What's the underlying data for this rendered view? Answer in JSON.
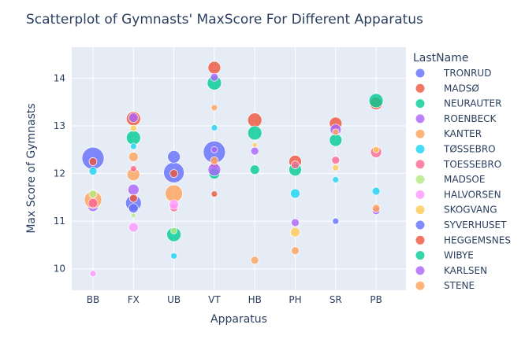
{
  "chart_data": {
    "type": "scatter",
    "title": "Scatterplot of Gymnasts' MaxScore For Different Apparatus",
    "xlabel": "Apparatus",
    "ylabel": "Max Score of Gymnasts",
    "categories": [
      "BB",
      "FX",
      "UB",
      "VT",
      "HB",
      "PH",
      "SR",
      "PB"
    ],
    "ylim": [
      9.55,
      14.65
    ],
    "yticks": [
      10,
      11,
      12,
      13,
      14
    ],
    "grid": true,
    "legend_title": "LastName",
    "legend_position": "right",
    "series": [
      {
        "name": "TRONRUD",
        "color": "#636efa",
        "points": [
          {
            "x": "BB",
            "y": 12.32,
            "size": 14
          },
          {
            "x": "FX",
            "y": 11.38,
            "size": 10
          },
          {
            "x": "UB",
            "y": 12.02,
            "size": 13
          },
          {
            "x": "VT",
            "y": 12.45,
            "size": 14
          },
          {
            "x": "SR",
            "y": 11.0,
            "size": 4
          }
        ]
      },
      {
        "name": "MADSØ",
        "color": "#EF553B",
        "points": [
          {
            "x": "BB",
            "y": 12.25,
            "size": 5
          },
          {
            "x": "FX",
            "y": 13.15,
            "size": 9
          },
          {
            "x": "UB",
            "y": 12.0,
            "size": 5
          },
          {
            "x": "VT",
            "y": 14.22,
            "size": 8
          },
          {
            "x": "HB",
            "y": 13.12,
            "size": 9
          },
          {
            "x": "PH",
            "y": 12.25,
            "size": 8
          },
          {
            "x": "SR",
            "y": 13.05,
            "size": 8
          },
          {
            "x": "PB",
            "y": 13.47,
            "size": 8
          }
        ]
      },
      {
        "name": "NEURAUTER",
        "color": "#00cc96",
        "points": [
          {
            "x": "FX",
            "y": 12.75,
            "size": 9
          },
          {
            "x": "UB",
            "y": 10.72,
            "size": 9
          },
          {
            "x": "VT",
            "y": 13.9,
            "size": 9
          },
          {
            "x": "HB",
            "y": 12.85,
            "size": 9
          },
          {
            "x": "PH",
            "y": 12.08,
            "size": 8
          },
          {
            "x": "SR",
            "y": 12.7,
            "size": 8
          },
          {
            "x": "PB",
            "y": 13.53,
            "size": 9
          }
        ]
      },
      {
        "name": "ROENBECK",
        "color": "#ab63fa",
        "points": [
          {
            "x": "BB",
            "y": 11.32,
            "size": 7
          },
          {
            "x": "FX",
            "y": 11.66,
            "size": 7
          },
          {
            "x": "VT",
            "y": 14.02,
            "size": 5
          },
          {
            "x": "HB",
            "y": 12.47,
            "size": 5
          },
          {
            "x": "PH",
            "y": 10.97,
            "size": 5
          },
          {
            "x": "SR",
            "y": 12.92,
            "size": 7
          },
          {
            "x": "PB",
            "y": 11.22,
            "size": 5
          }
        ]
      },
      {
        "name": "KANTER",
        "color": "#FFA15A",
        "points": [
          {
            "x": "BB",
            "y": 11.45,
            "size": 11
          },
          {
            "x": "FX",
            "y": 11.98,
            "size": 8
          },
          {
            "x": "UB",
            "y": 11.58,
            "size": 11
          },
          {
            "x": "VT",
            "y": 13.38,
            "size": 4
          },
          {
            "x": "HB",
            "y": 10.18,
            "size": 5
          },
          {
            "x": "PH",
            "y": 10.38,
            "size": 5
          },
          {
            "x": "PB",
            "y": 11.27,
            "size": 5
          }
        ]
      },
      {
        "name": "TØSSEBRO",
        "color": "#19d3f3",
        "points": [
          {
            "x": "BB",
            "y": 12.05,
            "size": 5
          },
          {
            "x": "FX",
            "y": 12.57,
            "size": 4
          },
          {
            "x": "UB",
            "y": 10.27,
            "size": 4
          },
          {
            "x": "VT",
            "y": 12.96,
            "size": 4
          },
          {
            "x": "PH",
            "y": 11.58,
            "size": 6
          },
          {
            "x": "SR",
            "y": 11.87,
            "size": 4
          },
          {
            "x": "PB",
            "y": 11.63,
            "size": 5
          }
        ]
      },
      {
        "name": "TOESSEBRO",
        "color": "#FF6692",
        "points": [
          {
            "x": "BB",
            "y": 11.38,
            "size": 6
          },
          {
            "x": "FX",
            "y": 12.1,
            "size": 4
          },
          {
            "x": "UB",
            "y": 11.28,
            "size": 5
          },
          {
            "x": "VT",
            "y": 12.18,
            "size": 5
          },
          {
            "x": "PH",
            "y": 12.18,
            "size": 5
          },
          {
            "x": "SR",
            "y": 12.28,
            "size": 5
          },
          {
            "x": "PB",
            "y": 12.45,
            "size": 7
          }
        ]
      },
      {
        "name": "MADSOE",
        "color": "#B6E880",
        "points": [
          {
            "x": "BB",
            "y": 11.57,
            "size": 5
          },
          {
            "x": "FX",
            "y": 11.12,
            "size": 3
          },
          {
            "x": "UB",
            "y": 10.8,
            "size": 4
          }
        ]
      },
      {
        "name": "HALVORSEN",
        "color": "#FF97FF",
        "points": [
          {
            "x": "BB",
            "y": 9.9,
            "size": 4
          },
          {
            "x": "FX",
            "y": 10.87,
            "size": 6
          },
          {
            "x": "UB",
            "y": 11.35,
            "size": 6
          }
        ]
      },
      {
        "name": "SKOGVANG",
        "color": "#FECB52",
        "points": [
          {
            "x": "FX",
            "y": 12.95,
            "size": 4
          },
          {
            "x": "HB",
            "y": 12.6,
            "size": 3
          },
          {
            "x": "PH",
            "y": 10.77,
            "size": 6
          },
          {
            "x": "SR",
            "y": 12.12,
            "size": 4
          },
          {
            "x": "PB",
            "y": 12.5,
            "size": 4
          }
        ]
      },
      {
        "name": "SYVERHUSET",
        "color": "#636efa",
        "points": [
          {
            "x": "FX",
            "y": 11.27,
            "size": 6
          },
          {
            "x": "UB",
            "y": 12.35,
            "size": 8
          }
        ]
      },
      {
        "name": "HEGGEMSNES",
        "color": "#EF553B",
        "points": [
          {
            "x": "FX",
            "y": 11.48,
            "size": 5
          },
          {
            "x": "VT",
            "y": 11.57,
            "size": 4
          }
        ]
      },
      {
        "name": "WIBYE",
        "color": "#00cc96",
        "points": [
          {
            "x": "HB",
            "y": 12.08,
            "size": 6
          },
          {
            "x": "VT",
            "y": 12.0,
            "size": 7
          }
        ]
      },
      {
        "name": "KARLSEN",
        "color": "#ab63fa",
        "points": [
          {
            "x": "FX",
            "y": 13.17,
            "size": 6
          },
          {
            "x": "VT",
            "y": 12.08,
            "size": 8
          },
          {
            "x": "VT",
            "y": 12.5,
            "size": 4
          }
        ]
      },
      {
        "name": "STENE",
        "color": "#FFA15A",
        "points": [
          {
            "x": "FX",
            "y": 12.35,
            "size": 6
          },
          {
            "x": "VT",
            "y": 12.27,
            "size": 5
          },
          {
            "x": "SR",
            "y": 12.87,
            "size": 4
          }
        ]
      }
    ]
  }
}
